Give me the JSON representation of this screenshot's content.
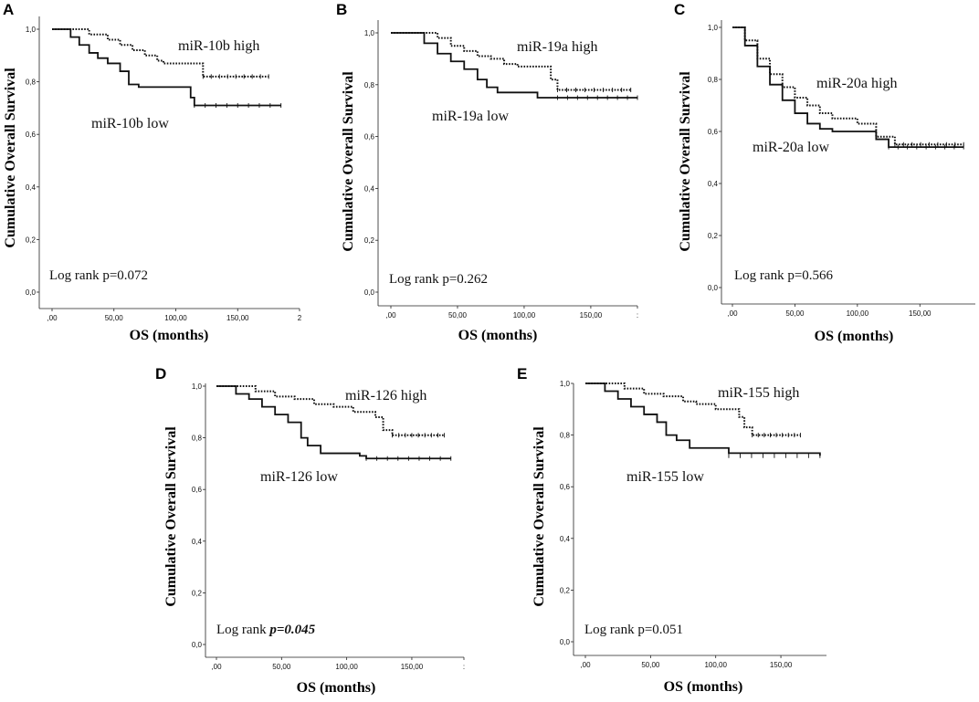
{
  "chart_data": [
    {
      "panel_label": "A",
      "type": "line",
      "xlabel": "OS (months)",
      "ylabel": "Cumulative Overall Survival",
      "xlim": [
        0,
        200
      ],
      "ylim": [
        0,
        1
      ],
      "x_ticks": [
        ",00",
        "50,00",
        "100,00",
        "150,00",
        "2"
      ],
      "y_ticks": [
        "0,0",
        "0,2",
        "0,4",
        "0,6",
        "0,8",
        "1,0"
      ],
      "annotation": "Log rank p=0.072",
      "series": [
        {
          "name": "miR-10b high",
          "style": "dotted",
          "x": [
            0,
            30,
            45,
            55,
            65,
            75,
            85,
            90,
            100,
            122,
            122,
            175
          ],
          "y": [
            1.0,
            0.98,
            0.96,
            0.94,
            0.92,
            0.9,
            0.88,
            0.87,
            0.87,
            0.87,
            0.82,
            0.82
          ]
        },
        {
          "name": "miR-10b low",
          "style": "solid",
          "x": [
            0,
            15,
            22,
            30,
            37,
            45,
            55,
            62,
            70,
            80,
            112,
            115,
            185
          ],
          "y": [
            1.0,
            0.97,
            0.94,
            0.91,
            0.89,
            0.87,
            0.84,
            0.79,
            0.78,
            0.78,
            0.74,
            0.71,
            0.71
          ]
        }
      ]
    },
    {
      "panel_label": "B",
      "type": "line",
      "xlabel": "OS (months)",
      "ylabel": "Cumulative Overall Survival",
      "xlim": [
        0,
        185
      ],
      "ylim": [
        0,
        1
      ],
      "x_ticks": [
        ",00",
        "50,00",
        "100,00",
        "150,00",
        ":"
      ],
      "y_ticks": [
        "0,0",
        "0,2",
        "0,4",
        "0,6",
        "0,8",
        "1,0"
      ],
      "annotation": "Log rank p=0.262",
      "series": [
        {
          "name": "miR-19a high",
          "style": "dotted",
          "x": [
            0,
            35,
            45,
            55,
            65,
            75,
            85,
            95,
            112,
            120,
            125,
            180
          ],
          "y": [
            1.0,
            0.98,
            0.95,
            0.93,
            0.91,
            0.9,
            0.88,
            0.87,
            0.87,
            0.82,
            0.78,
            0.78
          ]
        },
        {
          "name": "miR-19a low",
          "style": "solid",
          "x": [
            0,
            25,
            35,
            45,
            55,
            65,
            72,
            80,
            100,
            110,
            125,
            185
          ],
          "y": [
            1.0,
            0.96,
            0.92,
            0.89,
            0.86,
            0.82,
            0.79,
            0.77,
            0.77,
            0.75,
            0.75,
            0.75
          ]
        }
      ]
    },
    {
      "panel_label": "C",
      "type": "line",
      "xlabel": "OS (months)",
      "ylabel": "Cumulative Overall Survival",
      "xlim": [
        0,
        190
      ],
      "ylim": [
        0,
        1
      ],
      "x_ticks": [
        ",00",
        "50,00",
        "100,00",
        "150,00"
      ],
      "y_ticks": [
        "0,0",
        "0,2",
        "0,4",
        "0,6",
        "0,8",
        "1,0"
      ],
      "annotation": "Log rank p=0.566",
      "series": [
        {
          "name": "miR-20a high",
          "style": "dotted",
          "x": [
            0,
            10,
            20,
            30,
            40,
            50,
            60,
            70,
            80,
            100,
            115,
            130,
            185
          ],
          "y": [
            1.0,
            0.95,
            0.88,
            0.82,
            0.77,
            0.73,
            0.7,
            0.67,
            0.65,
            0.63,
            0.58,
            0.55,
            0.55
          ]
        },
        {
          "name": "miR-20a low",
          "style": "solid",
          "x": [
            0,
            10,
            20,
            30,
            40,
            50,
            60,
            70,
            80,
            100,
            115,
            125,
            185
          ],
          "y": [
            1.0,
            0.93,
            0.85,
            0.78,
            0.72,
            0.67,
            0.63,
            0.61,
            0.6,
            0.6,
            0.57,
            0.54,
            0.54
          ]
        }
      ]
    },
    {
      "panel_label": "D",
      "type": "line",
      "xlabel": "OS (months)",
      "ylabel": "Cumulative Overall Survival",
      "xlim": [
        0,
        190
      ],
      "ylim": [
        0,
        1
      ],
      "x_ticks": [
        ",00",
        "50,00",
        "100,00",
        "150,00",
        ":"
      ],
      "y_ticks": [
        "0,0",
        "0,2",
        "0,4",
        "0,6",
        "0,8",
        "1,0"
      ],
      "annotation_prefix": "Log rank",
      "annotation_value": "p=0.045",
      "series": [
        {
          "name": "miR-126 high",
          "style": "dotted",
          "x": [
            0,
            30,
            45,
            60,
            75,
            90,
            105,
            115,
            122,
            128,
            135,
            175
          ],
          "y": [
            1.0,
            0.98,
            0.96,
            0.95,
            0.93,
            0.92,
            0.9,
            0.9,
            0.88,
            0.83,
            0.81,
            0.81
          ]
        },
        {
          "name": "miR-126 low",
          "style": "solid",
          "x": [
            0,
            15,
            25,
            35,
            45,
            55,
            65,
            70,
            80,
            110,
            115,
            180
          ],
          "y": [
            1.0,
            0.97,
            0.95,
            0.92,
            0.89,
            0.86,
            0.8,
            0.77,
            0.74,
            0.73,
            0.72,
            0.72
          ]
        }
      ]
    },
    {
      "panel_label": "E",
      "type": "line",
      "xlabel": "OS (months)",
      "ylabel": "Cumulative Overall Survival",
      "xlim": [
        0,
        185
      ],
      "ylim": [
        0,
        1
      ],
      "x_ticks": [
        ",00",
        "50,00",
        "100,00",
        "150,00"
      ],
      "y_ticks": [
        "0,0",
        "0,2",
        "0,4",
        "0,6",
        "0,8",
        "1,0"
      ],
      "annotation": "Log rank p=0.051",
      "series": [
        {
          "name": "miR-155 high",
          "style": "dotted",
          "x": [
            0,
            30,
            45,
            60,
            75,
            85,
            100,
            112,
            118,
            122,
            128,
            165
          ],
          "y": [
            1.0,
            0.98,
            0.96,
            0.95,
            0.93,
            0.92,
            0.9,
            0.9,
            0.87,
            0.83,
            0.8,
            0.8
          ]
        },
        {
          "name": "miR-155 low",
          "style": "solid",
          "x": [
            0,
            15,
            25,
            35,
            45,
            55,
            62,
            70,
            80,
            100,
            110,
            180
          ],
          "y": [
            1.0,
            0.97,
            0.94,
            0.91,
            0.88,
            0.85,
            0.8,
            0.78,
            0.75,
            0.75,
            0.73,
            0.72
          ]
        }
      ]
    }
  ]
}
